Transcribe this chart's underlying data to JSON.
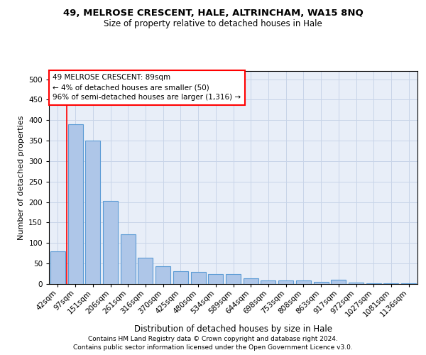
{
  "title_line1": "49, MELROSE CRESCENT, HALE, ALTRINCHAM, WA15 8NQ",
  "title_line2": "Size of property relative to detached houses in Hale",
  "xlabel": "Distribution of detached houses by size in Hale",
  "ylabel": "Number of detached properties",
  "categories": [
    "42sqm",
    "97sqm",
    "151sqm",
    "206sqm",
    "261sqm",
    "316sqm",
    "370sqm",
    "425sqm",
    "480sqm",
    "534sqm",
    "589sqm",
    "644sqm",
    "698sqm",
    "753sqm",
    "808sqm",
    "863sqm",
    "917sqm",
    "972sqm",
    "1027sqm",
    "1081sqm",
    "1136sqm"
  ],
  "values": [
    79,
    390,
    350,
    203,
    122,
    64,
    43,
    32,
    30,
    24,
    24,
    14,
    9,
    9,
    9,
    5,
    11,
    3,
    1,
    1,
    2
  ],
  "bar_color": "#aec6e8",
  "bar_edge_color": "#5b9bd5",
  "grid_color": "#c8d4e8",
  "annotation_text": "49 MELROSE CRESCENT: 89sqm\n← 4% of detached houses are smaller (50)\n96% of semi-detached houses are larger (1,316) →",
  "vline_x": 0.5,
  "footer_line1": "Contains HM Land Registry data © Crown copyright and database right 2024.",
  "footer_line2": "Contains public sector information licensed under the Open Government Licence v3.0.",
  "ylim": [
    0,
    520
  ],
  "yticks": [
    0,
    50,
    100,
    150,
    200,
    250,
    300,
    350,
    400,
    450,
    500
  ],
  "bg_color": "#e8eef8",
  "title1_fontsize": 9.5,
  "title2_fontsize": 8.5,
  "ylabel_fontsize": 8,
  "xlabel_fontsize": 8.5,
  "tick_fontsize": 7.5,
  "footer_fontsize": 6.5,
  "ann_fontsize": 7.5
}
